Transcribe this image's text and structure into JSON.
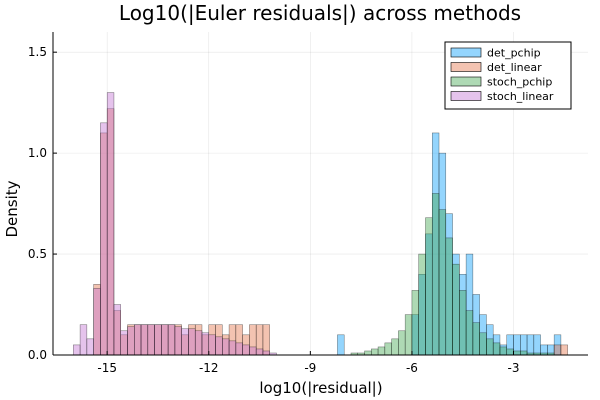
{
  "chart_data": {
    "type": "histogram",
    "title": "Log10(|Euler residuals|) across methods",
    "xlabel": "log10(|residual|)",
    "ylabel": "Density",
    "xlim": [
      -16.6,
      -0.8
    ],
    "ylim": [
      0,
      1.6
    ],
    "xticks": [
      -15,
      -12,
      -9,
      -6,
      -3
    ],
    "xtick_labels": [
      "-15",
      "-12",
      "-9",
      "-6",
      "-3"
    ],
    "yticks": [
      0,
      0.5,
      1.0,
      1.5
    ],
    "ytick_labels": [
      "0.0",
      "0.5",
      "1.0",
      "1.5"
    ],
    "grid": true,
    "legend_position": "top-right",
    "bin_width": 0.2,
    "series": [
      {
        "name": "det_pchip",
        "color": "#009AFA",
        "bins": [
          [
            -8.2,
            0.1
          ],
          [
            -6.0,
            0.2
          ],
          [
            -5.8,
            0.4
          ],
          [
            -5.6,
            0.6
          ],
          [
            -5.4,
            1.1
          ],
          [
            -5.2,
            1.0
          ],
          [
            -5.0,
            0.7
          ],
          [
            -4.8,
            0.5
          ],
          [
            -4.6,
            0.4
          ],
          [
            -4.4,
            0.5
          ],
          [
            -4.2,
            0.3
          ],
          [
            -4.0,
            0.2
          ],
          [
            -3.8,
            0.15
          ],
          [
            -3.6,
            0.1
          ],
          [
            -3.4,
            0.05
          ],
          [
            -3.2,
            0.1
          ],
          [
            -3.0,
            0.1
          ],
          [
            -2.8,
            0.1
          ],
          [
            -2.6,
            0.1
          ],
          [
            -2.4,
            0.1
          ],
          [
            -2.2,
            0.05
          ],
          [
            -2.0,
            0.05
          ],
          [
            -1.8,
            0.1
          ]
        ]
      },
      {
        "name": "det_linear",
        "color": "#E26F46",
        "bins": [
          [
            -15.4,
            0.35
          ],
          [
            -15.2,
            1.1
          ],
          [
            -15.0,
            1.22
          ],
          [
            -14.8,
            0.22
          ],
          [
            -14.6,
            0.1
          ],
          [
            -14.4,
            0.15
          ],
          [
            -14.2,
            0.15
          ],
          [
            -14.0,
            0.15
          ],
          [
            -13.8,
            0.15
          ],
          [
            -13.6,
            0.15
          ],
          [
            -13.4,
            0.15
          ],
          [
            -13.2,
            0.15
          ],
          [
            -13.0,
            0.15
          ],
          [
            -12.8,
            0.1
          ],
          [
            -12.6,
            0.15
          ],
          [
            -12.4,
            0.15
          ],
          [
            -12.2,
            0.1
          ],
          [
            -12.0,
            0.15
          ],
          [
            -11.8,
            0.15
          ],
          [
            -11.6,
            0.1
          ],
          [
            -11.4,
            0.15
          ],
          [
            -11.2,
            0.15
          ],
          [
            -11.0,
            0.1
          ],
          [
            -10.8,
            0.15
          ],
          [
            -10.6,
            0.15
          ],
          [
            -10.4,
            0.15
          ],
          [
            -1.8,
            0.05
          ],
          [
            -1.6,
            0.05
          ]
        ]
      },
      {
        "name": "stoch_pchip",
        "color": "#3DA44D",
        "bins": [
          [
            -7.8,
            0.01
          ],
          [
            -7.6,
            0.01
          ],
          [
            -7.4,
            0.02
          ],
          [
            -7.2,
            0.03
          ],
          [
            -7.0,
            0.04
          ],
          [
            -6.8,
            0.06
          ],
          [
            -6.6,
            0.08
          ],
          [
            -6.4,
            0.12
          ],
          [
            -6.2,
            0.2
          ],
          [
            -6.0,
            0.32
          ],
          [
            -5.8,
            0.5
          ],
          [
            -5.6,
            0.68
          ],
          [
            -5.4,
            0.8
          ],
          [
            -5.2,
            0.72
          ],
          [
            -5.0,
            0.58
          ],
          [
            -4.8,
            0.45
          ],
          [
            -4.6,
            0.32
          ],
          [
            -4.4,
            0.22
          ],
          [
            -4.2,
            0.16
          ],
          [
            -4.0,
            0.11
          ],
          [
            -3.8,
            0.08
          ],
          [
            -3.6,
            0.06
          ],
          [
            -3.4,
            0.04
          ],
          [
            -3.2,
            0.03
          ],
          [
            -3.0,
            0.02
          ],
          [
            -2.8,
            0.02
          ],
          [
            -2.6,
            0.01
          ],
          [
            -2.4,
            0.01
          ],
          [
            -2.2,
            0.01
          ],
          [
            -2.0,
            0.01
          ]
        ]
      },
      {
        "name": "stoch_linear",
        "color": "#C271D2",
        "bins": [
          [
            -16.0,
            0.05
          ],
          [
            -15.8,
            0.15
          ],
          [
            -15.6,
            0.08
          ],
          [
            -15.4,
            0.33
          ],
          [
            -15.2,
            1.15
          ],
          [
            -15.0,
            1.3
          ],
          [
            -14.8,
            0.25
          ],
          [
            -14.6,
            0.12
          ],
          [
            -14.4,
            0.14
          ],
          [
            -14.2,
            0.15
          ],
          [
            -14.0,
            0.15
          ],
          [
            -13.8,
            0.15
          ],
          [
            -13.6,
            0.15
          ],
          [
            -13.4,
            0.15
          ],
          [
            -13.2,
            0.15
          ],
          [
            -13.0,
            0.14
          ],
          [
            -12.8,
            0.13
          ],
          [
            -12.6,
            0.13
          ],
          [
            -12.4,
            0.12
          ],
          [
            -12.2,
            0.11
          ],
          [
            -12.0,
            0.1
          ],
          [
            -11.8,
            0.09
          ],
          [
            -11.6,
            0.08
          ],
          [
            -11.4,
            0.07
          ],
          [
            -11.2,
            0.06
          ],
          [
            -11.0,
            0.05
          ],
          [
            -10.8,
            0.04
          ],
          [
            -10.6,
            0.03
          ],
          [
            -10.4,
            0.02
          ],
          [
            -10.2,
            0.01
          ]
        ]
      }
    ]
  }
}
